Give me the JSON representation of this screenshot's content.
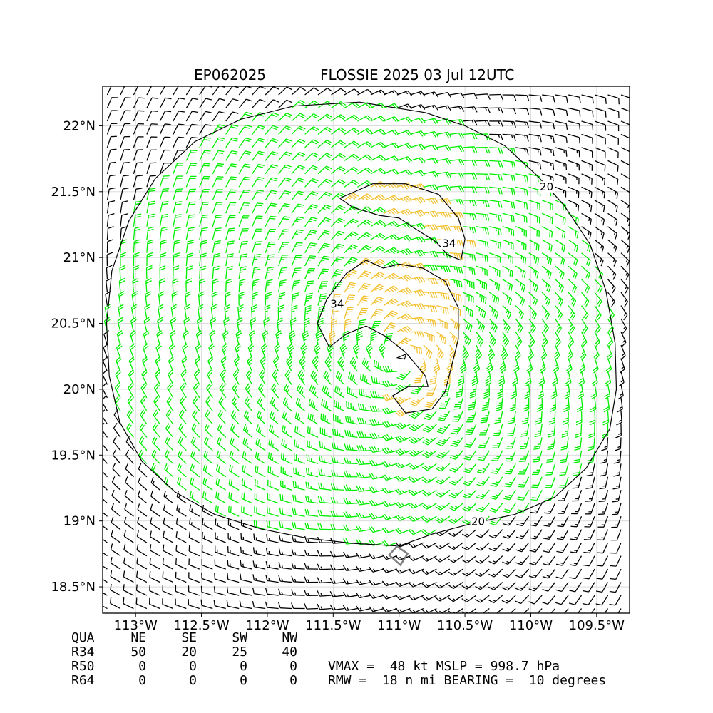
{
  "chart_data": {
    "type": "wind_barb_map",
    "title_left": "EP062025",
    "title_right": "FLOSSIE 2025 03 Jul 12UTC",
    "xlabel": "",
    "ylabel": "",
    "xlim": [
      -113.25,
      -109.25
    ],
    "ylim": [
      18.3,
      22.3
    ],
    "x_ticks": [
      -113.0,
      -112.5,
      -112.0,
      -111.5,
      -111.0,
      -110.5,
      -110.0,
      -109.5
    ],
    "x_tick_labels": [
      "113°W",
      "112.5°W",
      "112°W",
      "111.5°W",
      "111°W",
      "110.5°W",
      "110°W",
      "109.5°W"
    ],
    "y_ticks": [
      18.5,
      19.0,
      19.5,
      20.0,
      20.5,
      21.0,
      21.5,
      22.0
    ],
    "y_tick_labels": [
      "18.5°N",
      "19°N",
      "19.5°N",
      "20°N",
      "20.5°N",
      "21°N",
      "21.5°N",
      "22°N"
    ],
    "grid": true,
    "storm_center": [
      -110.98,
      20.25
    ],
    "vmax_kt": 48,
    "rmw_nmi": 18,
    "bearing_deg": 10,
    "wind_colors": {
      "below_20": "#000000",
      "20_to_34": "#00ee00",
      "34_to_50": "#f2c12e",
      "contour": "#000000"
    },
    "contour_labels": [
      {
        "text": "20",
        "x": -110.4,
        "y": 18.98
      },
      {
        "text": "20",
        "x": -109.88,
        "y": 21.52
      },
      {
        "text": "34",
        "x": -110.62,
        "y": 21.09
      },
      {
        "text": "34",
        "x": -111.47,
        "y": 20.63
      }
    ],
    "contour_20_lonlat": [
      [
        -111.0,
        18.81
      ],
      [
        -111.35,
        18.83
      ],
      [
        -111.7,
        18.87
      ],
      [
        -112.05,
        18.94
      ],
      [
        -112.4,
        19.05
      ],
      [
        -112.7,
        19.22
      ],
      [
        -112.95,
        19.45
      ],
      [
        -113.12,
        19.75
      ],
      [
        -113.2,
        20.1
      ],
      [
        -113.22,
        20.5
      ],
      [
        -113.18,
        20.9
      ],
      [
        -113.05,
        21.28
      ],
      [
        -112.85,
        21.6
      ],
      [
        -112.55,
        21.88
      ],
      [
        -112.2,
        22.05
      ],
      [
        -111.8,
        22.15
      ],
      [
        -111.3,
        22.18
      ],
      [
        -110.8,
        22.1
      ],
      [
        -110.5,
        22.0
      ],
      [
        -110.2,
        21.85
      ],
      [
        -109.95,
        21.62
      ],
      [
        -109.75,
        21.4
      ],
      [
        -109.55,
        21.1
      ],
      [
        -109.43,
        20.75
      ],
      [
        -109.36,
        20.35
      ],
      [
        -109.35,
        20.0
      ],
      [
        -109.4,
        19.7
      ],
      [
        -109.58,
        19.4
      ],
      [
        -109.82,
        19.18
      ],
      [
        -110.12,
        19.05
      ],
      [
        -110.45,
        18.98
      ],
      [
        -110.75,
        18.9
      ],
      [
        -111.0,
        18.81
      ]
    ],
    "contour_34_north_lonlat": [
      [
        -111.45,
        21.45
      ],
      [
        -111.2,
        21.56
      ],
      [
        -110.95,
        21.56
      ],
      [
        -110.7,
        21.48
      ],
      [
        -110.55,
        21.3
      ],
      [
        -110.5,
        21.14
      ],
      [
        -110.53,
        20.98
      ],
      [
        -110.63,
        21.02
      ],
      [
        -110.72,
        21.12
      ],
      [
        -110.88,
        21.22
      ],
      [
        -111.0,
        21.3
      ],
      [
        -111.15,
        21.32
      ],
      [
        -111.35,
        21.38
      ],
      [
        -111.45,
        21.45
      ]
    ],
    "contour_34_spiral_lonlat": [
      [
        -111.53,
        20.32
      ],
      [
        -111.62,
        20.5
      ],
      [
        -111.55,
        20.68
      ],
      [
        -111.4,
        20.88
      ],
      [
        -111.25,
        20.98
      ],
      [
        -111.12,
        20.92
      ],
      [
        -111.0,
        20.95
      ],
      [
        -110.82,
        20.92
      ],
      [
        -110.65,
        20.82
      ],
      [
        -110.55,
        20.62
      ],
      [
        -110.55,
        20.38
      ],
      [
        -110.6,
        20.18
      ],
      [
        -110.65,
        19.98
      ],
      [
        -110.75,
        19.85
      ],
      [
        -110.95,
        19.82
      ],
      [
        -111.05,
        19.95
      ],
      [
        -110.93,
        20.02
      ],
      [
        -110.78,
        20.02
      ],
      [
        -110.8,
        20.1
      ],
      [
        -110.95,
        20.28
      ],
      [
        -111.1,
        20.4
      ],
      [
        -111.25,
        20.48
      ],
      [
        -111.4,
        20.42
      ],
      [
        -111.53,
        20.32
      ]
    ],
    "stats_table": {
      "headers": [
        "QUA",
        "NE",
        "SE",
        "SW",
        "NW"
      ],
      "rows": [
        {
          "label": "R34",
          "values": [
            "50",
            "20",
            "25",
            "40"
          ]
        },
        {
          "label": "R50",
          "values": [
            "0",
            "0",
            "0",
            "0"
          ]
        },
        {
          "label": "R64",
          "values": [
            "0",
            "0",
            "0",
            "0"
          ]
        }
      ],
      "line_vmax": "VMAX =  48 kt MSLP = 998.7 hPa",
      "line_rmw": "RMW =  18 n mi BEARING =  10 degrees"
    }
  }
}
